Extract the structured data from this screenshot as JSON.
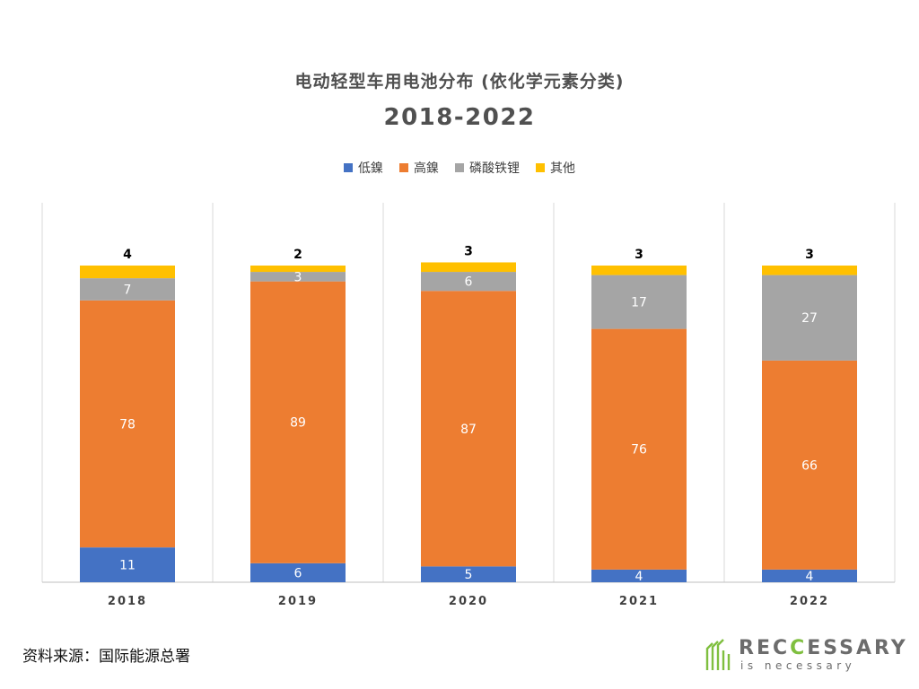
{
  "chart_data": {
    "type": "bar",
    "stacked": true,
    "title": "电动轻型车用电池分布 (依化学元素分类)",
    "subtitle": "2018-2022",
    "categories": [
      "2018",
      "2019",
      "2020",
      "2021",
      "2022"
    ],
    "series": [
      {
        "name": "低鎳",
        "color": "#4472c4",
        "values": [
          11,
          6,
          5,
          4,
          4
        ]
      },
      {
        "name": "高鎳",
        "color": "#ed7d31",
        "values": [
          78,
          89,
          87,
          76,
          66
        ]
      },
      {
        "name": "磷酸铁锂",
        "color": "#a5a5a5",
        "values": [
          7,
          3,
          6,
          17,
          27
        ]
      },
      {
        "name": "其他",
        "color": "#ffc000",
        "values": [
          4,
          2,
          3,
          3,
          3
        ]
      }
    ],
    "ylim": [
      0,
      100
    ],
    "grid": false,
    "legend_position": "top"
  },
  "source": "资料来源：国际能源总署",
  "brand": {
    "name_prefix": "REC",
    "name_accent": "C",
    "name_suffix": "ESSARY",
    "tagline": "is necessary"
  }
}
